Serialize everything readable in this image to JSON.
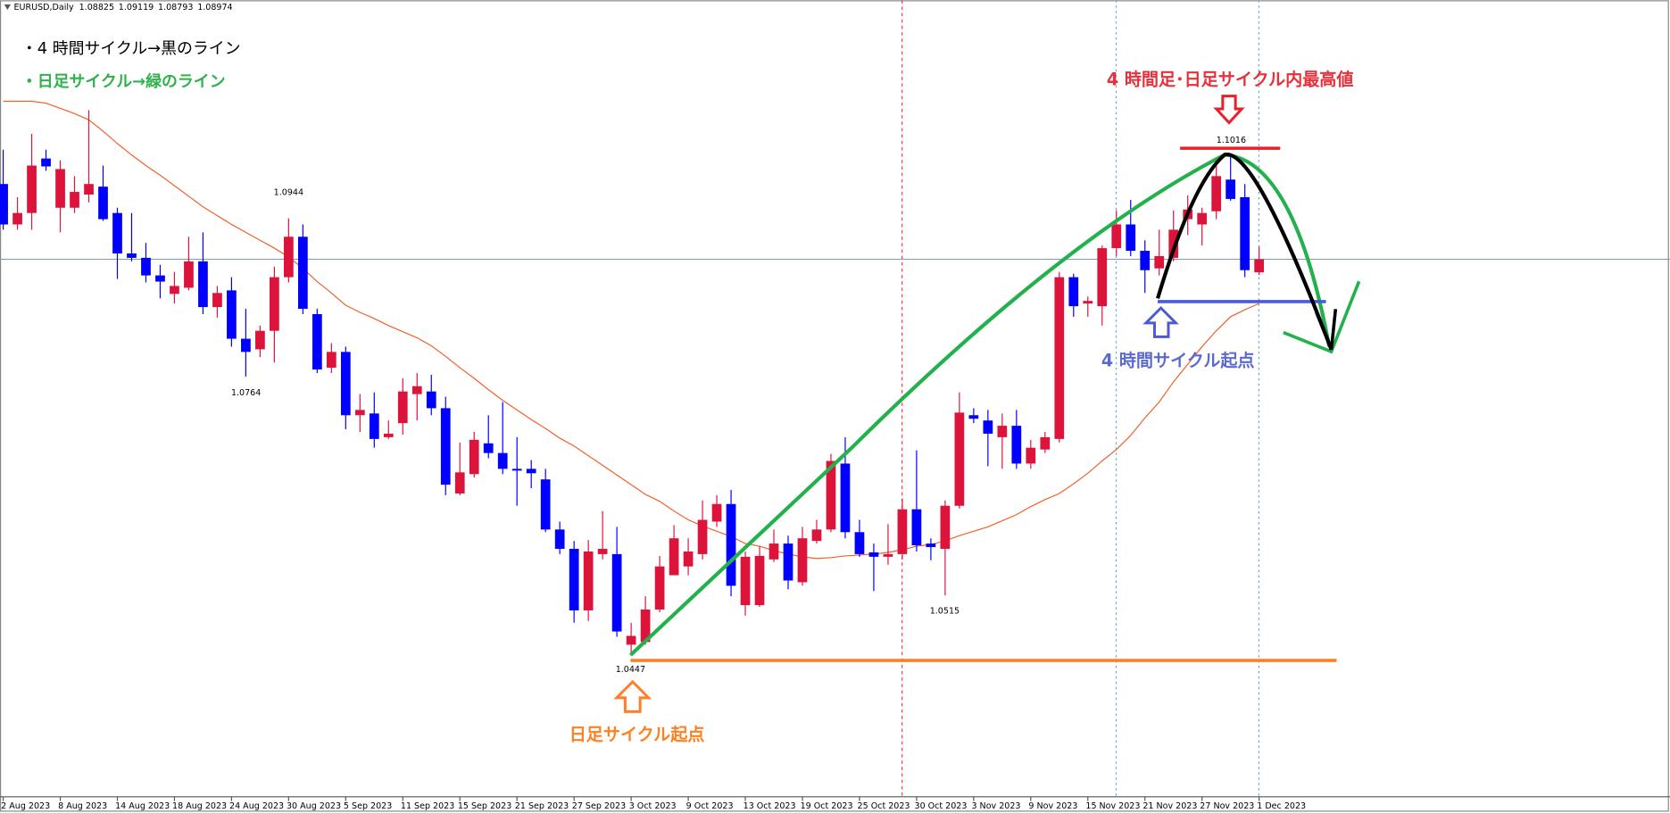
{
  "chart_data": {
    "type": "candlestick",
    "symbol": "EURUSD,Daily",
    "categories": [
      "2 Aug 2023",
      null,
      null,
      null,
      "8 Aug 2023",
      null,
      null,
      null,
      "14 Aug 2023",
      null,
      null,
      null,
      "18 Aug 2023",
      null,
      null,
      null,
      "24 Aug 2023",
      null,
      null,
      null,
      "30 Aug 2023",
      null,
      null,
      null,
      "5 Sep 2023",
      null,
      null,
      null,
      "11 Sep 2023",
      null,
      null,
      null,
      "15 Sep 2023",
      null,
      null,
      null,
      "21 Sep 2023",
      null,
      null,
      null,
      "27 Sep 2023",
      null,
      null,
      null,
      "3 Oct 2023",
      null,
      null,
      null,
      "9 Oct 2023",
      null,
      null,
      null,
      "13 Oct 2023",
      null,
      null,
      null,
      "19 Oct 2023",
      null,
      null,
      null,
      "25 Oct 2023",
      null,
      null,
      null,
      "30 Oct 2023",
      null,
      null,
      null,
      "3 Nov 2023",
      null,
      null,
      null,
      "9 Nov 2023",
      null,
      null,
      null,
      "15 Nov 2023",
      null,
      null,
      null,
      "21 Nov 2023",
      null,
      null,
      null,
      "27 Nov 2023",
      null,
      null,
      null,
      "1 Dec 2023"
    ],
    "open": [
      1.0983,
      1.0937,
      1.095,
      1.1012,
      1.0956,
      1.0956,
      1.0971,
      1.098,
      1.095,
      1.0904,
      1.0899,
      1.0879,
      1.0858,
      1.0865,
      1.0895,
      1.0843,
      1.0862,
      1.0807,
      1.0795,
      1.0816,
      1.0877,
      1.0923,
      1.0835,
      1.0774,
      1.0792,
      1.072,
      1.0722,
      1.0695,
      1.0711,
      1.0744,
      1.0747,
      1.0728,
      1.0631,
      1.0653,
      1.0688,
      1.0677,
      1.0659,
      1.0659,
      1.0647,
      1.059,
      1.0568,
      1.0498,
      1.0562,
      1.0562,
      1.0459,
      1.0462,
      1.0499,
      1.0538,
      1.0548,
      1.0562,
      1.0599,
      1.0619,
      1.0504,
      1.0504,
      1.0556,
      1.0574,
      1.053,
      1.0577,
      1.059,
      1.0665,
      1.0587,
      1.0564,
      1.0559,
      1.0562,
      1.0613,
      1.0574,
      1.0568,
      1.0617,
      1.072,
      1.0714,
      1.0695,
      1.0708,
      1.0665,
      1.0681,
      1.0693,
      1.0877,
      1.0847,
      1.0844,
      1.091,
      1.0937,
      1.0907,
      1.0887,
      1.0899,
      1.0943,
      1.0937,
      1.0952,
      1.0988,
      1.0968,
      1.08825
    ],
    "high": [
      1.1022,
      1.0968,
      1.104,
      1.1022,
      1.101,
      1.0992,
      1.1067,
      1.1004,
      1.0956,
      1.095,
      1.0916,
      1.0891,
      1.0883,
      1.0923,
      1.0928,
      1.0867,
      1.0877,
      1.0841,
      1.0822,
      1.0889,
      1.0944,
      1.0937,
      1.0841,
      1.0802,
      1.0798,
      1.0744,
      1.0746,
      1.0714,
      1.0762,
      1.0768,
      1.0766,
      1.0741,
      1.0689,
      1.0701,
      1.072,
      1.0735,
      1.0695,
      1.0669,
      1.0659,
      1.0599,
      1.0577,
      1.0578,
      1.0611,
      1.0593,
      1.0484,
      1.0514,
      1.056,
      1.0595,
      1.058,
      1.0623,
      1.0629,
      1.0635,
      1.0565,
      1.0571,
      1.059,
      1.0583,
      1.0593,
      1.0601,
      1.0676,
      1.0695,
      1.0601,
      1.0574,
      1.0596,
      1.0625,
      1.068,
      1.058,
      1.0623,
      1.0746,
      1.0728,
      1.0726,
      1.0722,
      1.0726,
      1.0692,
      1.0701,
      1.0883,
      1.0881,
      1.0855,
      1.0913,
      1.0953,
      1.0965,
      1.0919,
      1.0931,
      1.0953,
      1.097,
      1.0956,
      1.1008,
      1.1016,
      1.0983,
      1.09119
    ],
    "low": [
      1.0931,
      1.0931,
      1.0931,
      1.0998,
      1.0928,
      1.095,
      1.0962,
      1.0941,
      1.0875,
      1.0895,
      1.0871,
      1.0853,
      1.0847,
      1.0862,
      1.0835,
      1.0831,
      1.0798,
      1.0764,
      1.0786,
      1.078,
      1.0871,
      1.0835,
      1.0768,
      1.0768,
      1.0704,
      1.0701,
      1.0683,
      1.0693,
      1.0698,
      1.0714,
      1.072,
      1.0629,
      1.0629,
      1.0649,
      1.0671,
      1.0653,
      1.0617,
      1.0637,
      1.0587,
      1.0562,
      1.0484,
      1.0486,
      1.0556,
      1.0468,
      1.0447,
      1.0459,
      1.0496,
      1.0538,
      1.0538,
      1.0556,
      1.0593,
      1.0514,
      1.0492,
      1.0502,
      1.0553,
      1.0522,
      1.0526,
      1.0574,
      1.0587,
      1.058,
      1.0559,
      1.052,
      1.055,
      1.0556,
      1.0565,
      1.0555,
      1.0515,
      1.0614,
      1.0711,
      1.0662,
      1.0659,
      1.0659,
      1.0659,
      1.0677,
      1.0689,
      1.0832,
      1.0832,
      1.0822,
      1.0901,
      1.0901,
      1.0859,
      1.0879,
      1.0895,
      1.0925,
      1.0913,
      1.0943,
      1.0964,
      1.0877,
      1.08793
    ],
    "close": [
      1.0937,
      1.095,
      1.1004,
      1.1003,
      1.1,
      1.0974,
      1.0983,
      1.0943,
      1.0904,
      1.0899,
      1.0879,
      1.0872,
      1.0867,
      1.0895,
      1.0843,
      1.0859,
      1.0807,
      1.0792,
      1.0816,
      1.0877,
      1.0923,
      1.0841,
      1.0772,
      1.0792,
      1.072,
      1.0726,
      1.0693,
      1.0699,
      1.0747,
      1.0753,
      1.0728,
      1.0641,
      1.0655,
      1.0692,
      1.0677,
      1.0659,
      1.0657,
      1.0654,
      1.059,
      1.0568,
      1.0498,
      1.0565,
      1.0568,
      1.0474,
      1.0469,
      1.0499,
      1.0548,
      1.058,
      1.0565,
      1.0601,
      1.0619,
      1.0526,
      1.0559,
      1.056,
      1.0574,
      1.0532,
      1.058,
      1.059,
      1.0668,
      1.0587,
      1.0562,
      1.0559,
      1.0562,
      1.0613,
      1.0572,
      1.057,
      1.0617,
      1.0723,
      1.0716,
      1.0699,
      1.0708,
      1.0665,
      1.0683,
      1.0695,
      1.0877,
      1.0844,
      1.085,
      1.091,
      1.0937,
      1.0907,
      1.0885,
      1.0901,
      1.0931,
      1.0954,
      1.095,
      1.0992,
      1.0966,
      1.0885,
      1.08974
    ],
    "ma": [
      1.1077,
      1.1077,
      1.1077,
      1.1075,
      1.1069,
      1.1063,
      1.1056,
      1.1043,
      1.1029,
      1.1016,
      1.1004,
      1.0993,
      1.0981,
      1.0969,
      1.0957,
      1.0947,
      1.0937,
      1.0928,
      1.0919,
      1.091,
      1.09,
      1.0887,
      1.0872,
      1.0859,
      1.0845,
      1.0837,
      1.083,
      1.0822,
      1.0815,
      1.0808,
      1.0799,
      1.0787,
      1.0774,
      1.0762,
      1.0749,
      1.0737,
      1.0726,
      1.0715,
      1.0705,
      1.0694,
      1.0685,
      1.0674,
      1.0663,
      1.0652,
      1.0641,
      1.063,
      1.0622,
      1.0611,
      1.0601,
      1.0594,
      1.0588,
      1.0582,
      1.0574,
      1.0571,
      1.0566,
      1.0562,
      1.0559,
      1.0557,
      1.0558,
      1.056,
      1.0561,
      1.0562,
      1.0564,
      1.0567,
      1.0571,
      1.0573,
      1.0577,
      1.0583,
      1.0588,
      1.0593,
      1.06,
      1.0607,
      1.0616,
      1.0624,
      1.0631,
      1.0642,
      1.0654,
      1.0668,
      1.0681,
      1.0697,
      1.0717,
      1.0735,
      1.0758,
      1.0778,
      1.0798,
      1.0816,
      1.0832,
      1.084,
      1.0847
    ],
    "up_color": "#dc143c",
    "down_color": "#0000ff",
    "ma_color": "#f2602a",
    "ylim": [
      1.0286,
      1.1192
    ]
  },
  "annotations": {
    "legend_black": "・4 時間サイクル→黒のライン",
    "legend_green": "・日足サイクル→緑のライン",
    "peak": "4 時間足･日足サイクル内最高値",
    "h4_start": "4 時間サイクル起点",
    "daily_start": "日足サイクル起点"
  }
}
